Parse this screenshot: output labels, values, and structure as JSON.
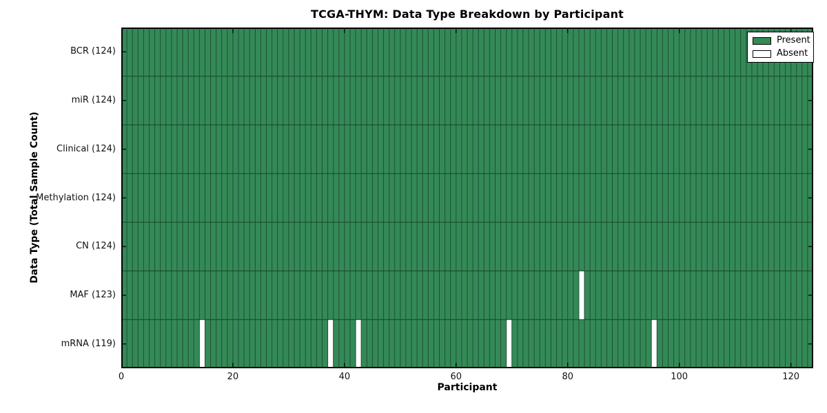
{
  "chart_data": {
    "type": "heatmap",
    "title": "TCGA-THYM: Data Type Breakdown by Participant",
    "xlabel": "Participant",
    "ylabel": "Data Type (Total Sample Count)",
    "n_participants": 124,
    "xlim": [
      0,
      124
    ],
    "x_ticks": [
      0,
      20,
      40,
      60,
      80,
      100,
      120
    ],
    "grid": "column edge per participant",
    "legend_position": "upper right",
    "rows": [
      {
        "data_type": "BCR",
        "label": "BCR (124)",
        "present_count": 124,
        "absent_count": 0,
        "absent_participants": []
      },
      {
        "data_type": "miR",
        "label": "miR (124)",
        "present_count": 124,
        "absent_count": 0,
        "absent_participants": []
      },
      {
        "data_type": "Clinical",
        "label": "Clinical (124)",
        "present_count": 124,
        "absent_count": 0,
        "absent_participants": []
      },
      {
        "data_type": "Methylation",
        "label": "Methylation (124)",
        "present_count": 124,
        "absent_count": 0,
        "absent_participants": []
      },
      {
        "data_type": "CN",
        "label": "CN (124)",
        "present_count": 124,
        "absent_count": 0,
        "absent_participants": []
      },
      {
        "data_type": "MAF",
        "label": "MAF (123)",
        "present_count": 123,
        "absent_count": 1,
        "absent_participants": [
          82
        ]
      },
      {
        "data_type": "mRNA",
        "label": "mRNA (119)",
        "present_count": 119,
        "absent_count": 5,
        "absent_participants": [
          14,
          37,
          42,
          69,
          95
        ]
      }
    ],
    "legend": [
      {
        "label": "Present",
        "color": "#348a57"
      },
      {
        "label": "Absent",
        "color": "#ffffff"
      }
    ],
    "colors": {
      "present": "#348a57",
      "absent": "#ffffff",
      "cell_edge": "#1e4f36",
      "row_divider": "#16432c",
      "axis": "#000000"
    }
  }
}
